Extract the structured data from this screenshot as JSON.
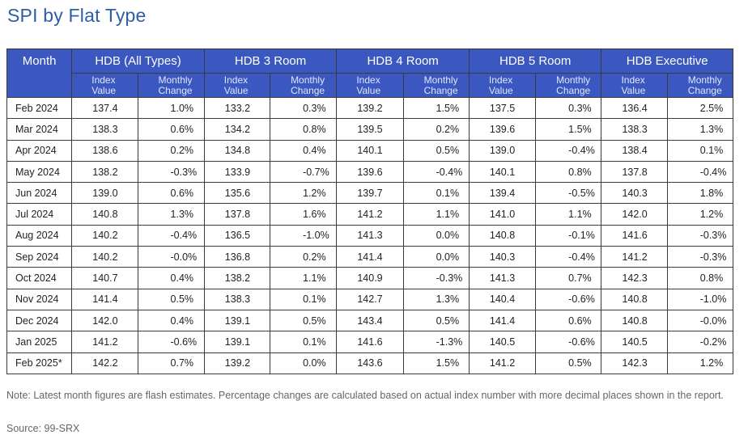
{
  "title": "SPI by Flat Type",
  "table": {
    "month_header": "Month",
    "groups": [
      "HDB (All Types)",
      "HDB 3 Room",
      "HDB 4 Room",
      "HDB 5 Room",
      "HDB Executive"
    ],
    "sub_index": [
      "Index",
      "Value"
    ],
    "sub_change": [
      "Monthly",
      "Change"
    ],
    "rows": [
      [
        "Feb 2024",
        "137.4",
        "1.0%",
        "133.2",
        "0.3%",
        "139.2",
        "1.5%",
        "137.5",
        "0.3%",
        "136.4",
        "2.5%"
      ],
      [
        "Mar 2024",
        "138.3",
        "0.6%",
        "134.2",
        "0.8%",
        "139.5",
        "0.2%",
        "139.6",
        "1.5%",
        "138.3",
        "1.3%"
      ],
      [
        "Apr 2024",
        "138.6",
        "0.2%",
        "134.8",
        "0.4%",
        "140.1",
        "0.5%",
        "139.0",
        "-0.4%",
        "138.4",
        "0.1%"
      ],
      [
        "May 2024",
        "138.2",
        "-0.3%",
        "133.9",
        "-0.7%",
        "139.6",
        "-0.4%",
        "140.1",
        "0.8%",
        "137.8",
        "-0.4%"
      ],
      [
        "Jun 2024",
        "139.0",
        "0.6%",
        "135.6",
        "1.2%",
        "139.7",
        "0.1%",
        "139.4",
        "-0.5%",
        "140.3",
        "1.8%"
      ],
      [
        "Jul 2024",
        "140.8",
        "1.3%",
        "137.8",
        "1.6%",
        "141.2",
        "1.1%",
        "141.0",
        "1.1%",
        "142.0",
        "1.2%"
      ],
      [
        "Aug 2024",
        "140.2",
        "-0.4%",
        "136.5",
        "-1.0%",
        "141.3",
        "0.0%",
        "140.8",
        "-0.1%",
        "141.6",
        "-0.3%"
      ],
      [
        "Sep 2024",
        "140.2",
        "-0.0%",
        "136.8",
        "0.2%",
        "141.4",
        "0.0%",
        "140.3",
        "-0.4%",
        "141.2",
        "-0.3%"
      ],
      [
        "Oct 2024",
        "140.7",
        "0.4%",
        "138.2",
        "1.1%",
        "140.9",
        "-0.3%",
        "141.3",
        "0.7%",
        "142.3",
        "0.8%"
      ],
      [
        "Nov 2024",
        "141.4",
        "0.5%",
        "138.3",
        "0.1%",
        "142.7",
        "1.3%",
        "140.4",
        "-0.6%",
        "140.8",
        "-1.0%"
      ],
      [
        "Dec 2024",
        "142.0",
        "0.4%",
        "139.1",
        "0.5%",
        "143.4",
        "0.5%",
        "141.4",
        "0.6%",
        "140.8",
        "-0.0%"
      ],
      [
        "Jan 2025",
        "141.2",
        "-0.6%",
        "139.1",
        "0.1%",
        "141.6",
        "-1.3%",
        "140.5",
        "-0.6%",
        "140.5",
        "-0.2%"
      ],
      [
        "Feb 2025*",
        "142.2",
        "0.7%",
        "139.2",
        "0.0%",
        "143.6",
        "1.5%",
        "141.2",
        "0.5%",
        "142.3",
        "1.2%"
      ]
    ]
  },
  "note": "Note: Latest month figures are flash estimates. Percentage changes are calculated based on actual index number with more decimal places shown in the report.",
  "source": "Source: 99-SRX",
  "colors": {
    "title": "#2e5da8",
    "header_bg": "#3a58c0",
    "header_text": "#ffffff"
  }
}
